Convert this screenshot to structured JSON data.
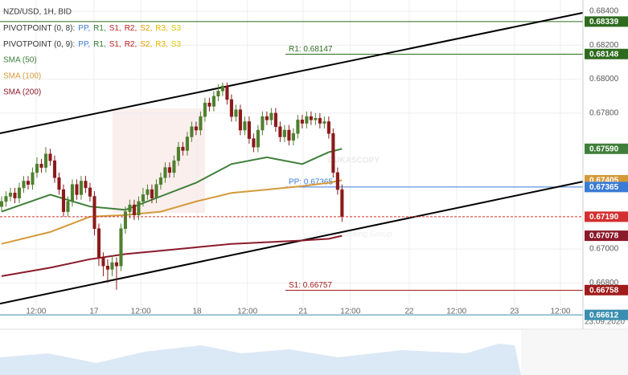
{
  "chart_data": {
    "type": "candlestick",
    "title": "NZD/USD, 1H, BID",
    "pivots": [
      {
        "name": "PIVOTPOINT (0, 8):",
        "items": [
          "PP,",
          "R1,",
          "S1,",
          "R2,",
          "S2,",
          "R3,",
          "S3"
        ]
      },
      {
        "name": "PIVOTPOINT (0, 9):",
        "items": [
          "PP,",
          "R1,",
          "S1,",
          "R2,",
          "S2,",
          "R3,",
          "S3"
        ]
      }
    ],
    "pivot_colors": [
      "#3a7bd5",
      "#2e7d32",
      "#c62828",
      "#b71c1c",
      "#e69a00",
      "#e6b400",
      "#d8c800"
    ],
    "watermark": [
      "DUKASCOPY",
      "Swiss Banking Group"
    ],
    "date_label": "23.09.2020",
    "xlim": [
      -0.36,
      131.5
    ],
    "xticks": [
      {
        "value": 7.8,
        "label": "12:00"
      },
      {
        "value": 20.9,
        "label": "17"
      },
      {
        "value": 31.5,
        "label": "12:00"
      },
      {
        "value": 44.2,
        "label": "18"
      },
      {
        "value": 55.6,
        "label": "12:00"
      },
      {
        "value": 68.2,
        "label": "21"
      },
      {
        "value": 78.9,
        "label": "12:00"
      },
      {
        "value": 92.2,
        "label": "22"
      },
      {
        "value": 102.9,
        "label": "12:00"
      },
      {
        "value": 116,
        "label": "23"
      },
      {
        "value": 126.4,
        "label": "12:00"
      }
    ],
    "ylim": [
      0.66608,
      0.68466
    ],
    "yticks": [
      {
        "value": 0.684,
        "label": "0.68400"
      },
      {
        "value": 0.682,
        "label": "0.68200"
      },
      {
        "value": 0.68,
        "label": "0.68000"
      },
      {
        "value": 0.678,
        "label": "0.67800"
      },
      {
        "value": 0.67,
        "label": "0.67000"
      },
      {
        "value": 0.668,
        "label": "0.66800"
      }
    ],
    "grid": true,
    "up_color": "#4f7f2f",
    "down_color": "#8b1a1a",
    "candles": {
      "open": [
        0.6725,
        0.6728,
        0.6731,
        0.6733,
        0.673,
        0.6736,
        0.674,
        0.6738,
        0.6745,
        0.675,
        0.6748,
        0.6756,
        0.6752,
        0.6742,
        0.6735,
        0.6722,
        0.6728,
        0.6738,
        0.6732,
        0.674,
        0.6736,
        0.6731,
        0.6712,
        0.6695,
        0.669,
        0.6688,
        0.6692,
        0.669,
        0.6712,
        0.6722,
        0.6726,
        0.672,
        0.6728,
        0.6732,
        0.6735,
        0.673,
        0.6738,
        0.6742,
        0.6748,
        0.6745,
        0.6752,
        0.676,
        0.6758,
        0.6766,
        0.6772,
        0.677,
        0.6778,
        0.6786,
        0.6784,
        0.679,
        0.6793,
        0.6796,
        0.6788,
        0.6778,
        0.6782,
        0.677,
        0.6775,
        0.6765,
        0.676,
        0.677,
        0.6778,
        0.6776,
        0.678,
        0.6772,
        0.6766,
        0.677,
        0.6764,
        0.6768,
        0.6776,
        0.6774,
        0.6778,
        0.6776,
        0.6777,
        0.6774,
        0.6775,
        0.6768,
        0.6745,
        0.6735
      ],
      "high": [
        0.6731,
        0.6734,
        0.6736,
        0.6736,
        0.6739,
        0.6743,
        0.6743,
        0.6748,
        0.6754,
        0.6753,
        0.676,
        0.6759,
        0.6755,
        0.6745,
        0.6738,
        0.6731,
        0.6741,
        0.6741,
        0.6743,
        0.6743,
        0.6739,
        0.6734,
        0.6715,
        0.6698,
        0.6694,
        0.6696,
        0.6695,
        0.6715,
        0.6725,
        0.6729,
        0.6729,
        0.6731,
        0.6736,
        0.6738,
        0.6738,
        0.6741,
        0.6745,
        0.6751,
        0.6751,
        0.6755,
        0.6763,
        0.6763,
        0.6769,
        0.6775,
        0.6775,
        0.6781,
        0.6789,
        0.6789,
        0.6793,
        0.6797,
        0.6798,
        0.6798,
        0.6791,
        0.6785,
        0.6785,
        0.6778,
        0.6778,
        0.6768,
        0.6773,
        0.6781,
        0.6781,
        0.6783,
        0.6783,
        0.6775,
        0.6773,
        0.6773,
        0.6771,
        0.6779,
        0.6779,
        0.6781,
        0.6781,
        0.678,
        0.678,
        0.6778,
        0.6778,
        0.6771,
        0.6748,
        0.6738
      ],
      "low": [
        0.6722,
        0.6725,
        0.6728,
        0.6727,
        0.6727,
        0.6733,
        0.6735,
        0.6735,
        0.6742,
        0.6745,
        0.6745,
        0.6749,
        0.6739,
        0.6732,
        0.6719,
        0.6719,
        0.6725,
        0.6729,
        0.6729,
        0.6733,
        0.6728,
        0.6708,
        0.669,
        0.6684,
        0.668,
        0.6684,
        0.6676,
        0.6687,
        0.6709,
        0.6718,
        0.6717,
        0.6717,
        0.6725,
        0.6729,
        0.6727,
        0.6727,
        0.6735,
        0.6739,
        0.6742,
        0.6742,
        0.6749,
        0.6755,
        0.6755,
        0.6763,
        0.6767,
        0.6767,
        0.6775,
        0.6781,
        0.6781,
        0.6787,
        0.679,
        0.6785,
        0.6775,
        0.6775,
        0.6767,
        0.6767,
        0.6762,
        0.6757,
        0.6757,
        0.6767,
        0.6773,
        0.6773,
        0.6769,
        0.6763,
        0.6763,
        0.6761,
        0.6761,
        0.6765,
        0.6771,
        0.6771,
        0.6773,
        0.6773,
        0.6771,
        0.6771,
        0.6765,
        0.6742,
        0.6732,
        0.6716
      ],
      "close": [
        0.6728,
        0.6731,
        0.6733,
        0.673,
        0.6736,
        0.674,
        0.6738,
        0.6745,
        0.675,
        0.6748,
        0.6756,
        0.6752,
        0.6742,
        0.6735,
        0.6722,
        0.6728,
        0.6738,
        0.6732,
        0.674,
        0.6736,
        0.6731,
        0.6712,
        0.6695,
        0.669,
        0.6688,
        0.6692,
        0.669,
        0.6712,
        0.6722,
        0.6726,
        0.672,
        0.6728,
        0.6732,
        0.6735,
        0.673,
        0.6738,
        0.6742,
        0.6748,
        0.6745,
        0.6752,
        0.676,
        0.6758,
        0.6766,
        0.6772,
        0.677,
        0.6778,
        0.6786,
        0.6784,
        0.679,
        0.6793,
        0.6796,
        0.6788,
        0.6778,
        0.6782,
        0.677,
        0.6775,
        0.6765,
        0.676,
        0.677,
        0.6778,
        0.6776,
        0.678,
        0.6772,
        0.6766,
        0.677,
        0.6764,
        0.6768,
        0.6776,
        0.6774,
        0.6778,
        0.6776,
        0.6777,
        0.6774,
        0.6775,
        0.6768,
        0.6745,
        0.6735,
        0.6719
      ]
    },
    "series": [
      {
        "name": "SMA (50)",
        "color": "#3f7f3a",
        "x": [
          0,
          11,
          20,
          28,
          36,
          44,
          52,
          60,
          68,
          74,
          77
        ],
        "values": [
          0.6722,
          0.6732,
          0.6725,
          0.6723,
          0.6731,
          0.6739,
          0.675,
          0.6754,
          0.675,
          0.6757,
          0.6759
        ]
      },
      {
        "name": "SMA (100)",
        "color": "#d49a3a",
        "x": [
          0,
          11,
          20,
          28,
          36,
          44,
          52,
          60,
          68,
          74,
          77
        ],
        "values": [
          0.6703,
          0.671,
          0.6719,
          0.672,
          0.6722,
          0.6728,
          0.6733,
          0.6735,
          0.6737,
          0.6739,
          0.67405
        ]
      },
      {
        "name": "SMA (200)",
        "color": "#8b1a2a",
        "x": [
          0,
          11,
          20,
          28,
          36,
          44,
          52,
          60,
          68,
          74,
          77
        ],
        "values": [
          0.6684,
          0.6689,
          0.6694,
          0.6697,
          0.6699,
          0.6701,
          0.6703,
          0.6704,
          0.6705,
          0.6706,
          0.67078
        ]
      }
    ],
    "trendlines": [
      {
        "values": [
          0.67681,
          0.68391
        ],
        "color": "#000000"
      },
      {
        "values": [
          0.66678,
          0.67397
        ],
        "color": "#000000"
      }
    ],
    "levels": [
      {
        "value": 0.68339,
        "color": "#2e6b1f"
      },
      {
        "value": 0.68147,
        "label": "R1: 0.68147",
        "color": "#2e6b1f"
      },
      {
        "value": 0.67365,
        "label": "PP: 0.67365",
        "color": "#3a7bd5"
      },
      {
        "value": 0.66757,
        "label": "S1: 0.66757",
        "color": "#a01c1c"
      },
      {
        "value": 0.66612,
        "color": "#3a8fb0"
      }
    ],
    "last_price": {
      "value": 0.6719,
      "label": "0.67190",
      "color": "#d32f2f"
    },
    "badges": [
      {
        "value": 0.68339,
        "color": "#2e6b1f"
      },
      {
        "value": 0.68148,
        "color": "#2e6b1f"
      },
      {
        "value": 0.6759,
        "label": "0.67590",
        "color": "#3f7f3a"
      },
      {
        "value": 0.67405,
        "color": "#d49a3a"
      },
      {
        "value": 0.67365,
        "color": "#3a7bd5"
      },
      {
        "value": 0.67078,
        "color": "#8b1a2a"
      },
      {
        "value": 0.66758,
        "color": "#a01c1c"
      },
      {
        "value": 0.66612,
        "color": "#3a8fb0"
      }
    ]
  }
}
